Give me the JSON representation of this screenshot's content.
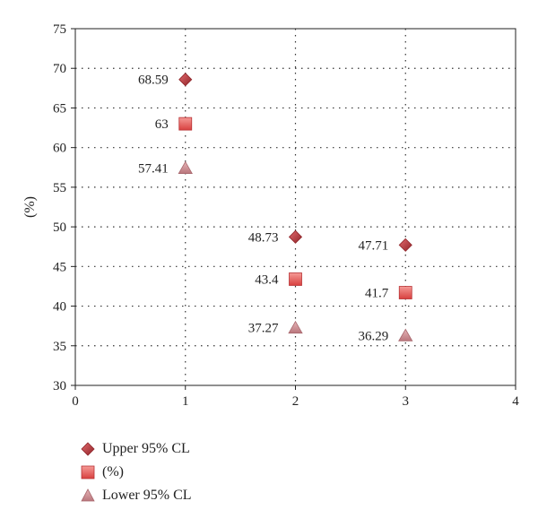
{
  "colors": {
    "upper": "#c0393f",
    "mid": "#e8504e",
    "lower": "#c8898f",
    "grid": "#333333",
    "axis": "#222222"
  },
  "chart_data": {
    "type": "scatter",
    "title": "",
    "xlabel": "",
    "ylabel": "(%)",
    "xlim": [
      0,
      4
    ],
    "ylim": [
      30,
      75
    ],
    "xticks": [
      0,
      1,
      2,
      3,
      4
    ],
    "yticks": [
      30,
      35,
      40,
      45,
      50,
      55,
      60,
      65,
      70,
      75
    ],
    "grid": true,
    "legend_position": "bottom-left",
    "series": [
      {
        "name": "Upper 95% CL",
        "marker": "diamond",
        "x": [
          1,
          2,
          3
        ],
        "y": [
          68.59,
          48.73,
          47.71
        ],
        "labels": [
          "68.59",
          "48.73",
          "47.71"
        ]
      },
      {
        "name": "(%)",
        "marker": "square",
        "x": [
          1,
          2,
          3
        ],
        "y": [
          63,
          43.4,
          41.7
        ],
        "labels": [
          "63",
          "43.4",
          "41.7"
        ]
      },
      {
        "name": "Lower 95% CL",
        "marker": "triangle",
        "x": [
          1,
          2,
          3
        ],
        "y": [
          57.41,
          37.27,
          36.29
        ],
        "labels": [
          "57.41",
          "37.27",
          "36.29"
        ]
      }
    ]
  }
}
